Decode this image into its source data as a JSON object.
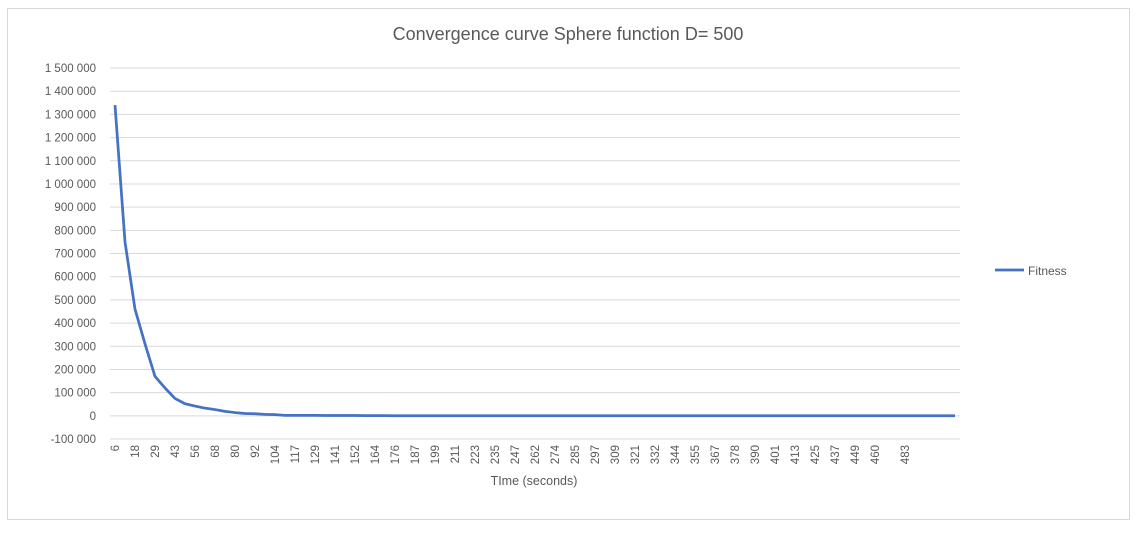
{
  "colors": {
    "series": "#4472c4",
    "grid": "#d9d9d9",
    "text": "#595959"
  },
  "chart_data": {
    "type": "line",
    "title": "Convergence curve Sphere function D= 500",
    "xlabel": "TIme (seconds)",
    "ylabel": "",
    "ylim": [
      -100000,
      1500000
    ],
    "yticks": [
      -100000,
      0,
      100000,
      200000,
      300000,
      400000,
      500000,
      600000,
      700000,
      800000,
      900000,
      1000000,
      1100000,
      1200000,
      1300000,
      1400000,
      1500000
    ],
    "ytick_labels": [
      "-100 000",
      "0",
      "100 000",
      "200 000",
      "300 000",
      "400 000",
      "500 000",
      "600 000",
      "700 000",
      "800 000",
      "900 000",
      "1 000 000",
      "1 100 000",
      "1 200 000",
      "1 300 000",
      "1 400 000",
      "1 500 000"
    ],
    "xtick_labels": [
      "6",
      "18",
      "29",
      "43",
      "56",
      "68",
      "80",
      "92",
      "104",
      "117",
      "129",
      "141",
      "152",
      "164",
      "176",
      "187",
      "199",
      "211",
      "223",
      "235",
      "247",
      "262",
      "274",
      "285",
      "297",
      "309",
      "321",
      "332",
      "344",
      "355",
      "367",
      "378",
      "390",
      "401",
      "413",
      "425",
      "437",
      "449",
      "460",
      "483"
    ],
    "grid": true,
    "legend_position": "right",
    "series": [
      {
        "name": "Fitness",
        "values": [
          1340000,
          750000,
          460000,
          310000,
          170000,
          120000,
          75000,
          52000,
          42000,
          33000,
          27000,
          19000,
          14000,
          10000,
          9000,
          6000,
          5000,
          2000,
          2000,
          2000,
          2000,
          1500,
          1500,
          1500,
          1500,
          1000,
          1000,
          1000,
          0,
          0,
          0,
          0,
          0,
          0,
          0,
          0,
          0,
          0,
          0,
          0,
          0,
          0,
          0,
          0,
          0,
          0,
          0,
          0,
          0,
          0,
          0,
          0,
          0,
          0,
          0,
          0,
          0,
          0,
          0,
          0,
          0,
          0,
          0,
          0,
          0,
          0,
          0,
          0,
          0,
          0,
          0,
          0,
          0,
          0,
          0,
          0,
          0,
          0,
          0,
          0,
          0,
          0,
          0,
          0,
          0
        ]
      }
    ]
  }
}
